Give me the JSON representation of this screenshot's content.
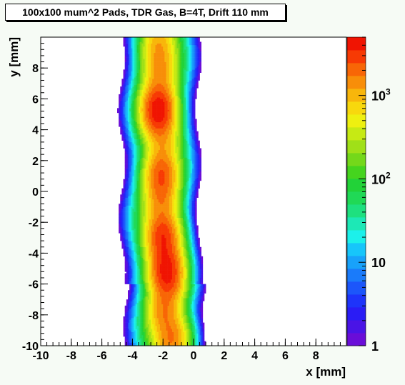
{
  "chart_data": {
    "type": "heatmap",
    "title": "100x100 mum^2 Pads, TDR Gas, B=4T, Drift 110 mm",
    "xlabel": "x [mm]",
    "ylabel": "y [mm]",
    "xlim": [
      -10,
      10
    ],
    "ylim": [
      -10,
      10
    ],
    "x_ticks": [
      "-10",
      "-8",
      "-6",
      "-4",
      "-2",
      "0",
      "2",
      "4",
      "6",
      "8"
    ],
    "y_ticks": [
      "-10",
      "-8",
      "-6",
      "-4",
      "-2",
      "0",
      "2",
      "4",
      "6",
      "8"
    ],
    "z_scale": "log",
    "zlim": [
      1,
      5000
    ],
    "z_ticks": [
      {
        "value": 1,
        "base": "1",
        "exp": ""
      },
      {
        "value": 10,
        "base": "10",
        "exp": ""
      },
      {
        "value": 100,
        "base": "10",
        "exp": "2"
      },
      {
        "value": 1000,
        "base": "10",
        "exp": "3"
      }
    ],
    "palette": [
      "#6a0dd8",
      "#4a14e6",
      "#2a1cf5",
      "#1e34fa",
      "#1c56fa",
      "#1a7bfa",
      "#18a2fa",
      "#17c6fa",
      "#1cf0ea",
      "#1de8b6",
      "#1ee07f",
      "#20d956",
      "#22d238",
      "#45d41e",
      "#74d81a",
      "#a0e018",
      "#c6ea14",
      "#eef010",
      "#f8d80d",
      "#f8b60b",
      "#f88e09",
      "#f86606",
      "#f73a04",
      "#f01402"
    ],
    "clusters": [
      {
        "x": -2.3,
        "y": 9.4,
        "amp": 900
      },
      {
        "x": -2.2,
        "y": 7.7,
        "amp": 1000
      },
      {
        "x": -2.3,
        "y": 5.3,
        "amp": 4500
      },
      {
        "x": -2.0,
        "y": 3.4,
        "amp": 700
      },
      {
        "x": -2.1,
        "y": 1.1,
        "amp": 2200
      },
      {
        "x": -2.1,
        "y": -0.6,
        "amp": 1100
      },
      {
        "x": -2.0,
        "y": -2.9,
        "amp": 3000
      },
      {
        "x": -1.8,
        "y": -4.7,
        "amp": 2200
      },
      {
        "x": -1.7,
        "y": -5.6,
        "amp": 2500
      },
      {
        "x": -1.9,
        "y": -7.8,
        "amp": 1300
      },
      {
        "x": -1.4,
        "y": -9.6,
        "amp": 1500
      }
    ],
    "grid": false,
    "legend": "right color bar"
  }
}
